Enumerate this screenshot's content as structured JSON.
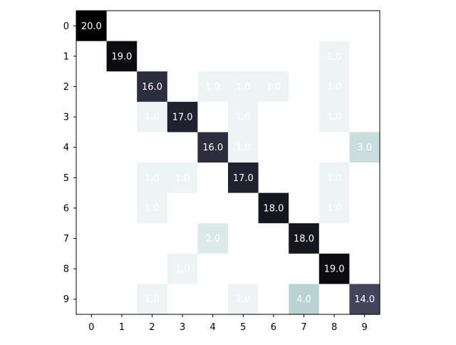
{
  "chart_data": {
    "type": "heatmap",
    "title": "",
    "xlabel": "",
    "ylabel": "",
    "x_categories": [
      "0",
      "1",
      "2",
      "3",
      "4",
      "5",
      "6",
      "7",
      "8",
      "9"
    ],
    "y_categories": [
      "0",
      "1",
      "2",
      "3",
      "4",
      "5",
      "6",
      "7",
      "8",
      "9"
    ],
    "values": [
      [
        20,
        0,
        0,
        0,
        0,
        0,
        0,
        0,
        0,
        0
      ],
      [
        0,
        19,
        0,
        0,
        0,
        0,
        0,
        0,
        1,
        0
      ],
      [
        0,
        0,
        16,
        0,
        1,
        1,
        1,
        0,
        1,
        0
      ],
      [
        0,
        0,
        1,
        17,
        0,
        1,
        0,
        0,
        1,
        0
      ],
      [
        0,
        0,
        0,
        0,
        16,
        1,
        0,
        0,
        0,
        3
      ],
      [
        0,
        0,
        1,
        1,
        0,
        17,
        0,
        0,
        1,
        0
      ],
      [
        0,
        0,
        1,
        0,
        0,
        0,
        18,
        0,
        1,
        0
      ],
      [
        0,
        0,
        0,
        0,
        2,
        0,
        0,
        18,
        0,
        0
      ],
      [
        0,
        0,
        0,
        1,
        0,
        0,
        0,
        0,
        19,
        0
      ],
      [
        0,
        0,
        1,
        0,
        0,
        1,
        0,
        4,
        0,
        14
      ]
    ],
    "value_format": "0.0",
    "hide_zero_labels": true,
    "colormap": "bone_r",
    "vmin": 0,
    "vmax": 20,
    "grid": false,
    "legend": "none"
  }
}
